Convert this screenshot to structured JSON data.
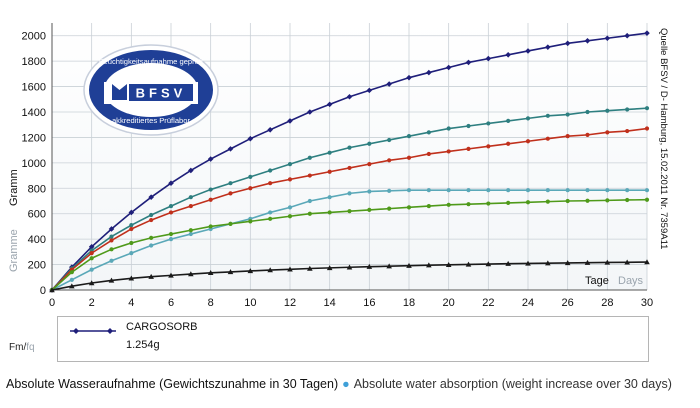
{
  "chart_data": {
    "type": "line",
    "x": [
      0,
      1,
      2,
      3,
      4,
      5,
      6,
      7,
      8,
      9,
      10,
      11,
      12,
      13,
      14,
      15,
      16,
      17,
      18,
      19,
      20,
      21,
      22,
      23,
      24,
      25,
      26,
      27,
      28,
      29,
      30
    ],
    "xlim": [
      0,
      30
    ],
    "ylim": [
      0,
      2100
    ],
    "x_ticks": [
      0,
      2,
      4,
      6,
      8,
      10,
      12,
      14,
      16,
      18,
      20,
      22,
      24,
      26,
      28,
      30
    ],
    "y_ticks": [
      0,
      200,
      400,
      600,
      800,
      1000,
      1200,
      1400,
      1600,
      1800,
      2000
    ],
    "ylabel_de": "Gramm",
    "ylabel_en": "Gramme",
    "xlabel_de": "Tage",
    "xlabel_en": "Days",
    "source_note": "Quelle BFSV / D- Hamburg, 15.02.2011   Nr. 7359A11",
    "grid": true,
    "series": [
      {
        "name": "CARGOSORB",
        "color": "#1f1f7a",
        "marker": "diamond",
        "values": [
          0,
          180,
          340,
          480,
          610,
          730,
          840,
          940,
          1030,
          1110,
          1190,
          1260,
          1330,
          1400,
          1460,
          1520,
          1570,
          1620,
          1670,
          1710,
          1750,
          1790,
          1820,
          1850,
          1880,
          1910,
          1940,
          1960,
          1980,
          2000,
          2020
        ]
      },
      {
        "name": "",
        "color": "#2e7f80",
        "marker": "dot",
        "values": [
          0,
          170,
          310,
          420,
          510,
          590,
          660,
          730,
          790,
          840,
          890,
          940,
          990,
          1040,
          1080,
          1120,
          1150,
          1180,
          1210,
          1240,
          1270,
          1290,
          1310,
          1330,
          1350,
          1370,
          1380,
          1400,
          1410,
          1420,
          1430
        ]
      },
      {
        "name": "",
        "color": "#c0301c",
        "marker": "dot",
        "values": [
          0,
          160,
          290,
          390,
          480,
          550,
          610,
          660,
          710,
          760,
          800,
          840,
          870,
          900,
          930,
          960,
          990,
          1020,
          1040,
          1070,
          1090,
          1110,
          1130,
          1150,
          1170,
          1190,
          1210,
          1220,
          1240,
          1250,
          1270
        ]
      },
      {
        "name": "",
        "color": "#5aa8b8",
        "marker": "dot",
        "values": [
          0,
          80,
          160,
          230,
          290,
          350,
          400,
          440,
          480,
          520,
          560,
          610,
          650,
          700,
          730,
          760,
          775,
          780,
          785,
          785,
          785,
          785,
          785,
          785,
          785,
          785,
          785,
          785,
          785,
          785,
          785
        ]
      },
      {
        "name": "",
        "color": "#4f9a1a",
        "marker": "dot",
        "values": [
          0,
          140,
          250,
          320,
          370,
          410,
          440,
          470,
          500,
          520,
          540,
          560,
          580,
          600,
          610,
          620,
          630,
          640,
          650,
          660,
          670,
          675,
          680,
          685,
          690,
          695,
          700,
          702,
          705,
          708,
          710
        ]
      },
      {
        "name": "",
        "color": "#1a1a1a",
        "marker": "triangle",
        "values": [
          0,
          30,
          55,
          75,
          92,
          105,
          115,
          125,
          135,
          142,
          150,
          157,
          163,
          169,
          174,
          179,
          183,
          187,
          191,
          195,
          198,
          201,
          204,
          207,
          209,
          211,
          213,
          215,
          217,
          218,
          220
        ]
      }
    ]
  },
  "seal": {
    "top_text": "Feuchtigkeitsaufnahme geprüft",
    "logo_text": "BFSV",
    "bottom_text": "akkreditiertes Prüflabor"
  },
  "legend": {
    "name": "CARGOSORB",
    "weight": "1.254g"
  },
  "unit": {
    "a": "Fm/",
    "b": "fq"
  },
  "caption": {
    "de": "Absolute Wasseraufnahme (Gewichtszunahme in 30 Tagen)",
    "separator": "●",
    "en": "Absolute water absorption (weight increase over 30 days)"
  }
}
